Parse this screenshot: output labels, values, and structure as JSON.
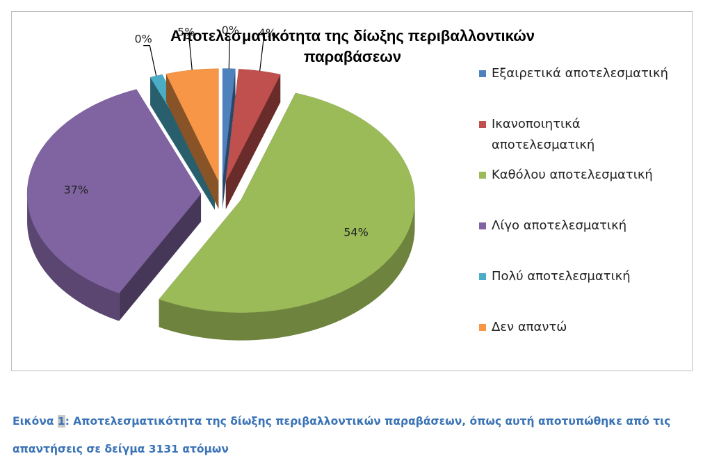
{
  "chart_data": {
    "type": "pie",
    "style": "3d-exploded",
    "title_lines": [
      "Αποτελεσματικότητα της δίωξης περιβαλλοντικών",
      "παραβάσεων"
    ],
    "legend_position": "right",
    "slices": [
      {
        "name": "Εξαιρετικά αποτελεσματική",
        "legend_lines": [
          "Εξαιρετικά αποτελεσματική"
        ],
        "value": 0,
        "label": "0%",
        "color": "#4f81bd"
      },
      {
        "name": "Ικανοποιητικά αποτελεσματική",
        "legend_lines": [
          "Ικανοποιητικά",
          "αποτελεσματική"
        ],
        "value": 4,
        "label": "4%",
        "color": "#c0504d"
      },
      {
        "name": "Καθόλου αποτελεσματική",
        "legend_lines": [
          "Καθόλου αποτελεσματική"
        ],
        "value": 54,
        "label": "54%",
        "color": "#9bbb59"
      },
      {
        "name": "Λίγο αποτελεσματική",
        "legend_lines": [
          "Λίγο αποτελεσματική"
        ],
        "value": 37,
        "label": "37%",
        "color": "#8064a2"
      },
      {
        "name": "Πολύ αποτελεσματική",
        "legend_lines": [
          "Πολύ αποτελεσματική"
        ],
        "value": 0,
        "label": "0%",
        "color": "#4bacc6"
      },
      {
        "name": "Δεν απαντώ",
        "legend_lines": [
          "Δεν απαντώ"
        ],
        "value": 5,
        "label": "5%",
        "color": "#f79646"
      }
    ]
  },
  "caption": {
    "prefix": "Εικόνα ",
    "number": "1",
    "text": ": Αποτελεσματικότητα της δίωξης περιβαλλοντικών παραβάσεων, όπως αυτή αποτυπώθηκε από τις απαντήσεις σε δείγμα 3131 ατόμων"
  }
}
